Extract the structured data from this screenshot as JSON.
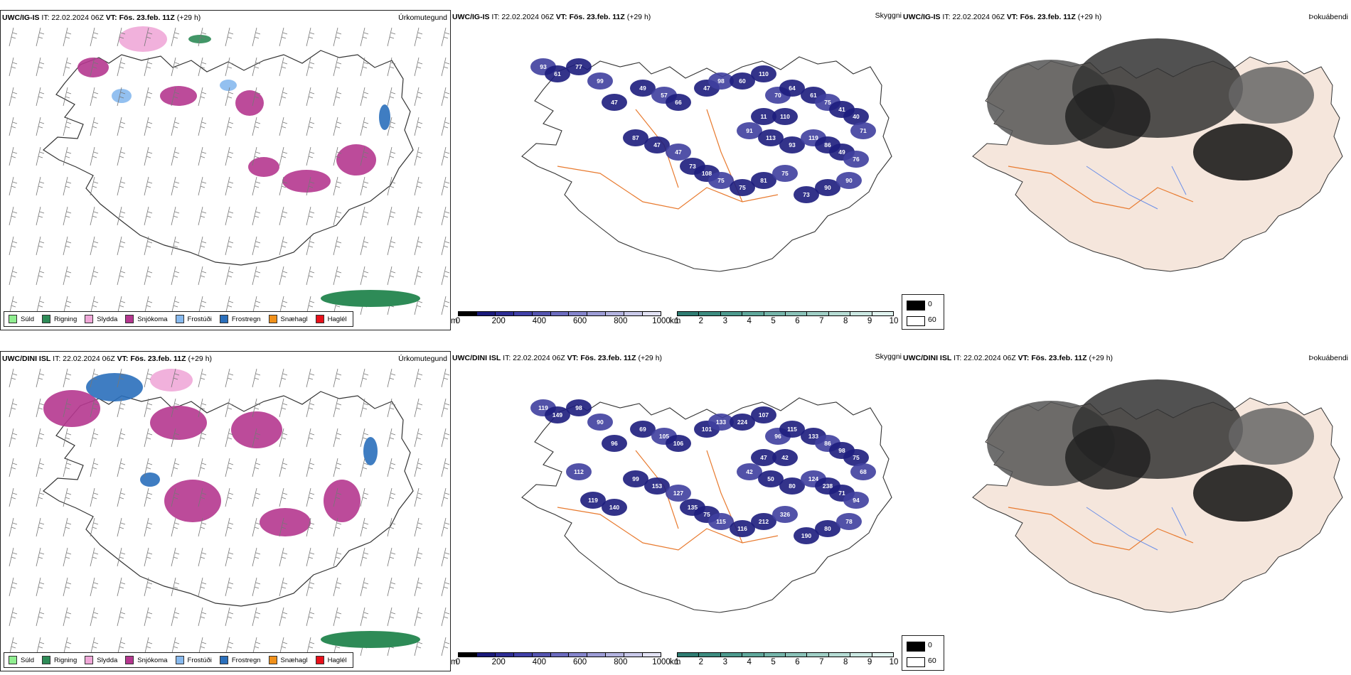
{
  "models": [
    {
      "name": "UWC/IG-IS",
      "it": "IT: 22.02.2024 06Z",
      "vt_label": "VT:",
      "vt": "Fös. 23.feb. 11Z",
      "lead": "(+29 h)"
    },
    {
      "name": "UWC/DINI ISL",
      "it": "IT: 22.02.2024 06Z",
      "vt_label": "VT:",
      "vt": "Fös. 23.feb. 11Z",
      "lead": "(+29 h)"
    }
  ],
  "panel_names": {
    "precip": "Úrkomutegund",
    "visibility": "Skyggni",
    "fog": "Þokuábendi"
  },
  "precip_legend": [
    {
      "label": "Súld",
      "color": "#90ee90"
    },
    {
      "label": "Rigning",
      "color": "#2e8b57"
    },
    {
      "label": "Slydda",
      "color": "#f0a8d8"
    },
    {
      "label": "Snjókoma",
      "color": "#b5378f"
    },
    {
      "label": "Frostúði",
      "color": "#87b9ee"
    },
    {
      "label": "Frostregn",
      "color": "#2a6fbb"
    },
    {
      "label": "Snæhagl",
      "color": "#f0901a"
    },
    {
      "label": "Haglél",
      "color": "#e8101a"
    }
  ],
  "ceiling_scale": {
    "unit": "m",
    "ticks": [
      "0",
      "200",
      "400",
      "600",
      "800",
      "1000"
    ],
    "colors": [
      "#000000",
      "#1a1a7a",
      "#2e2e95",
      "#4141a8",
      "#5555b0",
      "#6c6cbf",
      "#8585cc",
      "#9d9dd6",
      "#b4b4e0",
      "#cacaea",
      "#e2e2f4"
    ]
  },
  "visibility_scale": {
    "unit": "km",
    "ticks": [
      "1",
      "2",
      "3",
      "4",
      "5",
      "6",
      "7",
      "8",
      "9",
      "10"
    ],
    "colors": [
      "#2f7c72",
      "#3d8c80",
      "#4d9a8e",
      "#60a89c",
      "#75b5aa",
      "#8ac2b8",
      "#a0cfc6",
      "#b6dcd4",
      "#cbe8e2",
      "#e0f3ef"
    ]
  },
  "fog_scale": [
    {
      "label": "0",
      "color": "#000000"
    },
    {
      "label": "60",
      "color": "#ffffff"
    }
  ],
  "map_labels": {
    "vis_top": [
      "93",
      "61",
      "77",
      "99",
      "47",
      "49",
      "57",
      "66",
      "47",
      "98",
      "60",
      "110",
      "70",
      "64",
      "61",
      "75",
      "41",
      "40",
      "71",
      "110",
      "11",
      "91",
      "113",
      "93",
      "119",
      "86",
      "49",
      "76",
      "87",
      "47",
      "47",
      "73",
      "108",
      "75",
      "75",
      "81",
      "75",
      "73",
      "90",
      "90"
    ],
    "vis_bottom": [
      "119",
      "149",
      "98",
      "90",
      "96",
      "69",
      "105",
      "106",
      "101",
      "133",
      "224",
      "107",
      "96",
      "115",
      "133",
      "86",
      "98",
      "75",
      "68",
      "42",
      "47",
      "42",
      "50",
      "80",
      "124",
      "238",
      "71",
      "94",
      "99",
      "153",
      "127",
      "135",
      "75",
      "115",
      "116",
      "212",
      "326",
      "190",
      "80",
      "78",
      "119",
      "140",
      "112"
    ]
  },
  "colors": {
    "coast": "#222222",
    "roads": "#e87b30",
    "land_fog": "#f5e6dc",
    "rivers": "#6b8fe8"
  }
}
